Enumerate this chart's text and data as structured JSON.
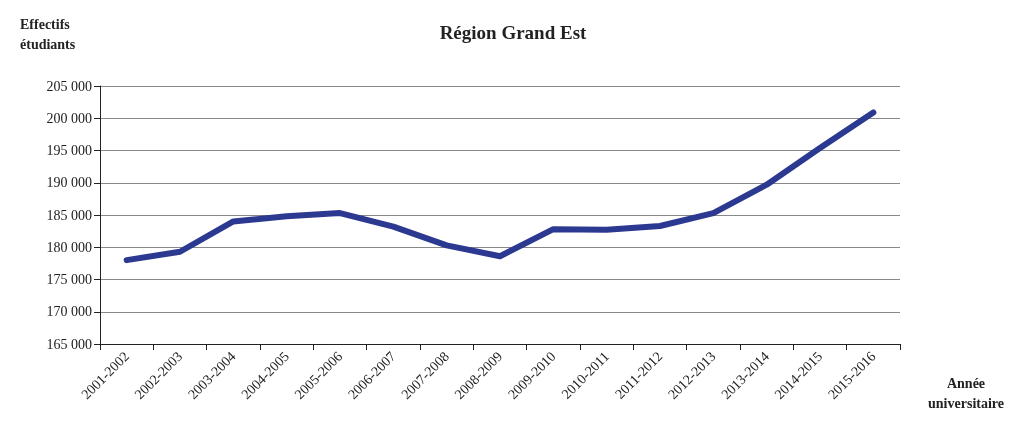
{
  "chart_data": {
    "type": "line",
    "title": "Région Grand Est",
    "ylabel": "Effectifs\nétudiants",
    "xlabel": "Année\nuniversitaire",
    "categories": [
      "2001-2002",
      "2002-2003",
      "2003-2004",
      "2004-2005",
      "2005-2006",
      "2006-2007",
      "2007-2008",
      "2008-2009",
      "2009-2010",
      "2010-2011",
      "2011-2012",
      "2012-2013",
      "2013-2014",
      "2014-2015",
      "2015-2016"
    ],
    "series": [
      {
        "color": "#2b3990",
        "values": [
          178000,
          179300,
          184000,
          184800,
          185300,
          183200,
          180300,
          178600,
          182800,
          182700,
          183300,
          185300,
          189700,
          195400,
          200900
        ]
      }
    ],
    "ylim": [
      165000,
      205000
    ],
    "yticks": [
      {
        "value": 165000,
        "label": "165 000"
      },
      {
        "value": 170000,
        "label": "170 000"
      },
      {
        "value": 175000,
        "label": "175 000"
      },
      {
        "value": 180000,
        "label": "180 000"
      },
      {
        "value": 185000,
        "label": "185 000"
      },
      {
        "value": 190000,
        "label": "190 000"
      },
      {
        "value": 195000,
        "label": "195 000"
      },
      {
        "value": 200000,
        "label": "200 000"
      },
      {
        "value": 205000,
        "label": "205 000"
      }
    ],
    "grid": "y",
    "marker": "none",
    "line_style": "solid"
  }
}
